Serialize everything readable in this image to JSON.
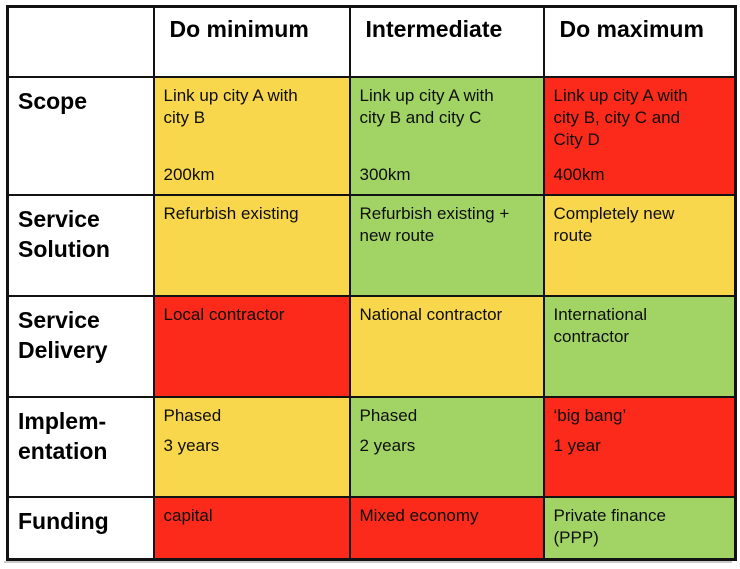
{
  "table": {
    "colors": {
      "yellow": "#F8D74D",
      "green": "#A2D465",
      "red": "#FB2A1A",
      "border": "#121212",
      "header_background": "#FFFFFF",
      "text": "#0E0E0E"
    },
    "columns": [
      "",
      "Do minimum",
      "Intermediate",
      "Do maximum"
    ],
    "rows": [
      {
        "label": "Scope",
        "cells": [
          {
            "color": "yellow",
            "paras": [
              "Link up city A with\ncity B"
            ],
            "footer": "200km"
          },
          {
            "color": "green",
            "paras": [
              "Link up city A with\ncity B and city C"
            ],
            "footer": "300km"
          },
          {
            "color": "red",
            "paras": [
              "Link up city A with\ncity B, city C and\nCity D"
            ],
            "footer": "400km"
          }
        ]
      },
      {
        "label": "Service\nSolution",
        "cells": [
          {
            "color": "yellow",
            "paras": [
              "Refurbish existing"
            ]
          },
          {
            "color": "green",
            "paras": [
              "Refurbish existing +\nnew route"
            ]
          },
          {
            "color": "yellow",
            "paras": [
              "Completely new\nroute"
            ]
          }
        ]
      },
      {
        "label": "Service\nDelivery",
        "cells": [
          {
            "color": "red",
            "paras": [
              "Local contractor"
            ]
          },
          {
            "color": "yellow",
            "paras": [
              "National contractor"
            ]
          },
          {
            "color": "green",
            "paras": [
              "International\ncontractor"
            ]
          }
        ]
      },
      {
        "label": "Implem-\nentation",
        "cells": [
          {
            "color": "yellow",
            "paras": [
              "Phased",
              "3 years"
            ]
          },
          {
            "color": "green",
            "paras": [
              "Phased",
              "2 years"
            ]
          },
          {
            "color": "red",
            "paras": [
              "‘big bang’",
              "1 year"
            ]
          }
        ]
      },
      {
        "label": "Funding",
        "cells": [
          {
            "color": "red",
            "paras": [
              "capital"
            ]
          },
          {
            "color": "red",
            "paras": [
              "Mixed economy"
            ]
          },
          {
            "color": "green",
            "paras": [
              "Private finance\n(PPP)"
            ]
          }
        ]
      }
    ]
  }
}
